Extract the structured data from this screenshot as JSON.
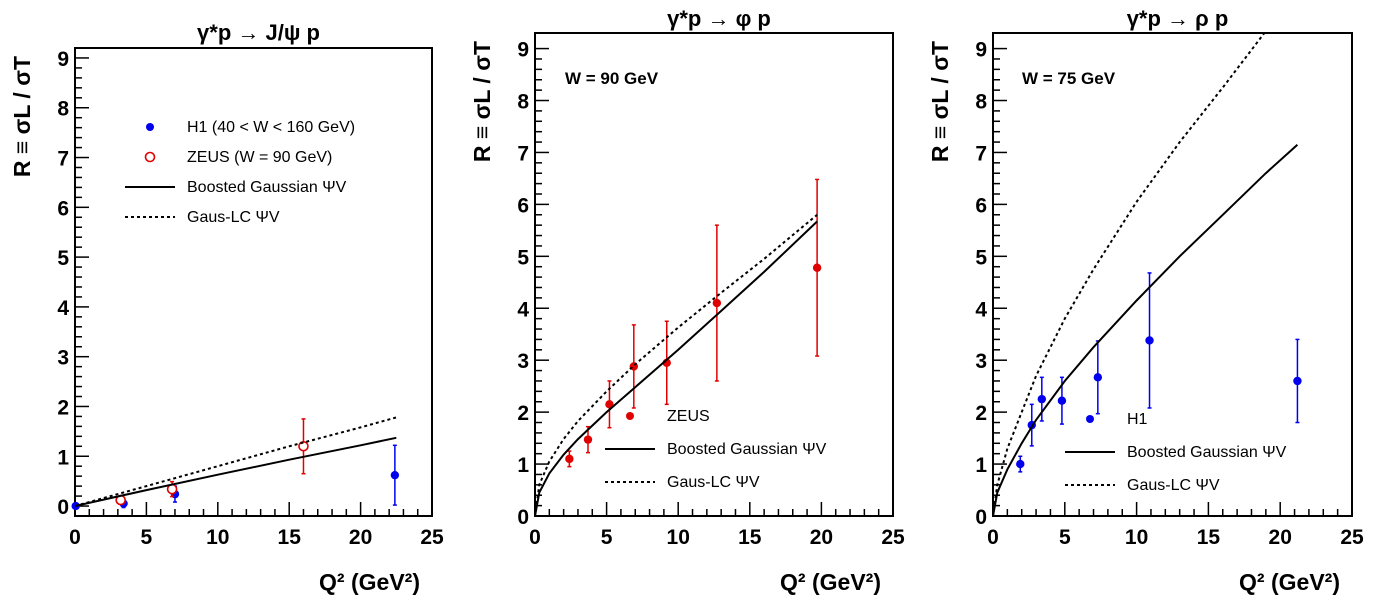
{
  "chart_data": [
    {
      "type": "scatter",
      "title": "γ*p → J/ψ p",
      "xlabel": "Q² (GeV²)",
      "ylabel": "R ≡ σL / σT",
      "xlim": [
        0,
        25
      ],
      "ylim": [
        -0.2,
        9.2
      ],
      "xticks": [
        "0",
        "5",
        "10",
        "15",
        "20",
        "25"
      ],
      "yticks": [
        "0",
        "1",
        "2",
        "3",
        "4",
        "5",
        "6",
        "7",
        "8",
        "9"
      ],
      "annotation": "",
      "legend_position": "top-right",
      "series": [
        {
          "name": "H1  (40 < W < 160 GeV)",
          "kind": "points",
          "marker": "filled-circle",
          "color": "#0000ee",
          "points": [
            {
              "x": 0.05,
              "y": 0.0,
              "err": 0.0
            },
            {
              "x": 3.4,
              "y": 0.05,
              "err": 0.08
            },
            {
              "x": 7.0,
              "y": 0.24,
              "err": 0.16
            },
            {
              "x": 22.4,
              "y": 0.62,
              "err": 0.6
            }
          ]
        },
        {
          "name": "ZEUS  (W = 90 GeV)",
          "kind": "points",
          "marker": "open-circle",
          "color": "#e00000",
          "points": [
            {
              "x": 3.2,
              "y": 0.12,
              "err": 0.07
            },
            {
              "x": 6.8,
              "y": 0.34,
              "err": 0.15
            },
            {
              "x": 16.0,
              "y": 1.2,
              "err": 0.55
            }
          ]
        },
        {
          "name": "Boosted Gaussian ΨV",
          "kind": "line",
          "dash": "solid",
          "color": "#000000",
          "points": [
            {
              "x": 0,
              "y": 0
            },
            {
              "x": 5,
              "y": 0.32
            },
            {
              "x": 10,
              "y": 0.63
            },
            {
              "x": 15,
              "y": 0.93
            },
            {
              "x": 20,
              "y": 1.22
            },
            {
              "x": 22.5,
              "y": 1.37
            }
          ]
        },
        {
          "name": "Gaus-LC ΨV",
          "kind": "line",
          "dash": "dotted",
          "color": "#000000",
          "points": [
            {
              "x": 0,
              "y": 0
            },
            {
              "x": 5,
              "y": 0.4
            },
            {
              "x": 10,
              "y": 0.8
            },
            {
              "x": 15,
              "y": 1.2
            },
            {
              "x": 20,
              "y": 1.58
            },
            {
              "x": 22.5,
              "y": 1.78
            }
          ]
        }
      ]
    },
    {
      "type": "scatter",
      "title": "γ*p → φ p",
      "xlabel": "Q² (GeV²)",
      "ylabel": "R ≡ σL / σT",
      "xlim": [
        0,
        25
      ],
      "ylim": [
        0,
        9.3
      ],
      "xticks": [
        "0",
        "5",
        "10",
        "15",
        "20",
        "25"
      ],
      "yticks": [
        "0",
        "1",
        "2",
        "3",
        "4",
        "5",
        "6",
        "7",
        "8",
        "9"
      ],
      "annotation": "W = 90 GeV",
      "legend_position": "bottom-right",
      "series": [
        {
          "name": "ZEUS",
          "kind": "points",
          "marker": "filled-circle",
          "color": "#e00000",
          "points": [
            {
              "x": 2.4,
              "y": 1.1,
              "err": 0.15
            },
            {
              "x": 3.7,
              "y": 1.47,
              "err": 0.25
            },
            {
              "x": 5.2,
              "y": 2.15,
              "err": 0.45
            },
            {
              "x": 6.9,
              "y": 2.88,
              "err": 0.8
            },
            {
              "x": 9.2,
              "y": 2.95,
              "err": 0.8
            },
            {
              "x": 12.7,
              "y": 4.1,
              "err": 1.5
            },
            {
              "x": 19.7,
              "y": 4.78,
              "err": 1.7
            }
          ]
        },
        {
          "name": "Boosted Gaussian ΨV",
          "kind": "line",
          "dash": "solid",
          "color": "#000000",
          "points": [
            {
              "x": 0,
              "y": 0
            },
            {
              "x": 0.3,
              "y": 0.45
            },
            {
              "x": 1,
              "y": 0.82
            },
            {
              "x": 2,
              "y": 1.18
            },
            {
              "x": 3,
              "y": 1.48
            },
            {
              "x": 5,
              "y": 2.0
            },
            {
              "x": 7,
              "y": 2.48
            },
            {
              "x": 10,
              "y": 3.2
            },
            {
              "x": 13,
              "y": 3.95
            },
            {
              "x": 16,
              "y": 4.7
            },
            {
              "x": 19.7,
              "y": 5.67
            }
          ]
        },
        {
          "name": "Gaus-LC ΨV",
          "kind": "line",
          "dash": "dotted",
          "color": "#000000",
          "points": [
            {
              "x": 0,
              "y": 0
            },
            {
              "x": 0.3,
              "y": 0.6
            },
            {
              "x": 1,
              "y": 1.05
            },
            {
              "x": 2,
              "y": 1.48
            },
            {
              "x": 3,
              "y": 1.83
            },
            {
              "x": 5,
              "y": 2.4
            },
            {
              "x": 7,
              "y": 2.92
            },
            {
              "x": 10,
              "y": 3.63
            },
            {
              "x": 13,
              "y": 4.3
            },
            {
              "x": 16,
              "y": 4.95
            },
            {
              "x": 19.7,
              "y": 5.8
            }
          ]
        }
      ]
    },
    {
      "type": "scatter",
      "title": "γ*p → ρ p",
      "xlabel": "Q² (GeV²)",
      "ylabel": "R ≡ σL / σT",
      "xlim": [
        0,
        25
      ],
      "ylim": [
        0,
        9.3
      ],
      "xticks": [
        "0",
        "5",
        "10",
        "15",
        "20",
        "25"
      ],
      "yticks": [
        "0",
        "1",
        "2",
        "3",
        "4",
        "5",
        "6",
        "7",
        "8",
        "9"
      ],
      "annotation": "W = 75 GeV",
      "legend_position": "bottom-right",
      "series": [
        {
          "name": "H1",
          "kind": "points",
          "marker": "filled-circle",
          "color": "#0000ee",
          "points": [
            {
              "x": 1.9,
              "y": 1.0,
              "err": 0.15
            },
            {
              "x": 2.7,
              "y": 1.75,
              "err": 0.4
            },
            {
              "x": 3.4,
              "y": 2.25,
              "err": 0.42
            },
            {
              "x": 4.8,
              "y": 2.22,
              "err": 0.45
            },
            {
              "x": 7.3,
              "y": 2.67,
              "err": 0.7
            },
            {
              "x": 10.9,
              "y": 3.38,
              "err": 1.3
            },
            {
              "x": 21.2,
              "y": 2.6,
              "err": 0.8
            }
          ]
        },
        {
          "name": "Boosted Gaussian ΨV",
          "kind": "line",
          "dash": "solid",
          "color": "#000000",
          "points": [
            {
              "x": 0,
              "y": 0
            },
            {
              "x": 0.3,
              "y": 0.45
            },
            {
              "x": 1,
              "y": 0.9
            },
            {
              "x": 2,
              "y": 1.4
            },
            {
              "x": 3,
              "y": 1.85
            },
            {
              "x": 5,
              "y": 2.6
            },
            {
              "x": 7,
              "y": 3.25
            },
            {
              "x": 10,
              "y": 4.15
            },
            {
              "x": 13,
              "y": 5.0
            },
            {
              "x": 16,
              "y": 5.8
            },
            {
              "x": 19,
              "y": 6.6
            },
            {
              "x": 21.2,
              "y": 7.15
            }
          ]
        },
        {
          "name": "Gaus-LC ΨV",
          "kind": "line",
          "dash": "dotted",
          "color": "#000000",
          "points": [
            {
              "x": 0,
              "y": 0
            },
            {
              "x": 0.3,
              "y": 0.6
            },
            {
              "x": 1,
              "y": 1.3
            },
            {
              "x": 2,
              "y": 2.0
            },
            {
              "x": 3,
              "y": 2.7
            },
            {
              "x": 5,
              "y": 3.8
            },
            {
              "x": 7,
              "y": 4.75
            },
            {
              "x": 10,
              "y": 6.05
            },
            {
              "x": 13,
              "y": 7.2
            },
            {
              "x": 16,
              "y": 8.25
            },
            {
              "x": 18.9,
              "y": 9.3
            }
          ]
        }
      ]
    }
  ]
}
